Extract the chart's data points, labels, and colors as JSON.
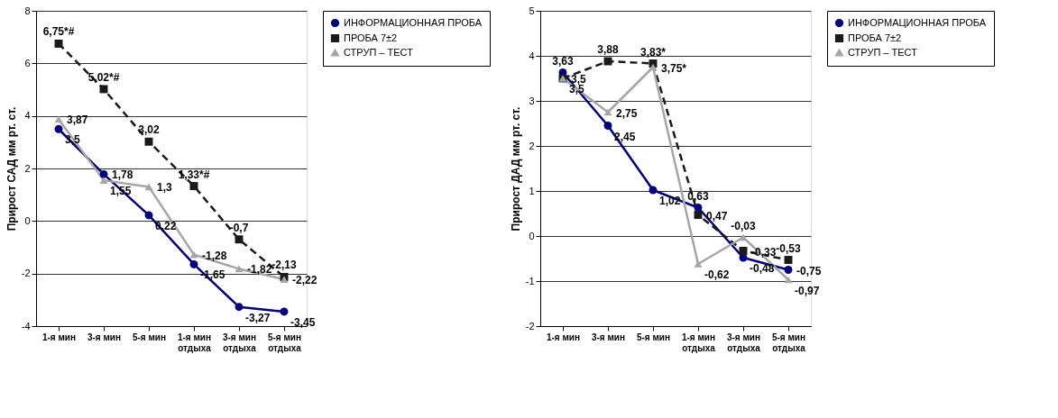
{
  "chart_data": [
    {
      "type": "line",
      "ylabel": "Прирост САД мм рт. ст.",
      "categories": [
        "1-я мин",
        "3-я мин",
        "5-я мин",
        "1-я мин отдыха",
        "3-я мин отдыха",
        "5-я мин отдыха"
      ],
      "ylim": [
        -4,
        8
      ],
      "yticks": [
        -4,
        -2,
        0,
        2,
        4,
        6,
        8
      ],
      "grid": "y",
      "legend": "right",
      "series": [
        {
          "name": "ИНФОРМАЦИОННАЯ ПРОБА",
          "color": "#000080",
          "marker": "circle",
          "line_style": "solid",
          "values": [
            3.5,
            1.78,
            0.22,
            -1.65,
            -3.27,
            -3.45
          ],
          "value_labels": [
            "3,5",
            "1,78",
            "0,22",
            "-1,65",
            "-3,27",
            "-3,45"
          ]
        },
        {
          "name": "ПРОБА 7±2",
          "color": "#1a1a1a",
          "marker": "square",
          "line_style": "dashed",
          "values": [
            6.75,
            5.02,
            3.02,
            1.33,
            -0.7,
            -2.13
          ],
          "value_labels": [
            "6,75*#",
            "5,02*#",
            "3,02",
            "1,33*#",
            "-0,7",
            "-2,13"
          ]
        },
        {
          "name": "СТРУП – ТЕСТ",
          "color": "#a6a6a6",
          "marker": "triangle",
          "line_style": "solid",
          "values": [
            3.87,
            1.55,
            1.3,
            -1.28,
            -1.82,
            -2.22
          ],
          "value_labels": [
            "3,87",
            "1,55",
            "1,3",
            "-1,28",
            "-1,82",
            "-2,22"
          ]
        }
      ]
    },
    {
      "type": "line",
      "ylabel": "Прирост ДАД мм рт. ст.",
      "categories": [
        "1-я мин",
        "3-я мин",
        "5-я мин",
        "1-я мин отдыха",
        "3-я мин отдыха",
        "5-я мин отдыха"
      ],
      "ylim": [
        -2,
        5
      ],
      "yticks": [
        -2,
        -1,
        0,
        1,
        2,
        3,
        4,
        5
      ],
      "grid": "y",
      "legend": "right",
      "series": [
        {
          "name": "ИНФОРМАЦИОННАЯ ПРОБА",
          "color": "#000080",
          "marker": "circle",
          "line_style": "solid",
          "values": [
            3.63,
            2.45,
            1.02,
            0.63,
            -0.48,
            -0.75
          ],
          "value_labels": [
            "3,63",
            "2,45",
            "1,02",
            "0,63",
            "-0,48",
            "-0,75"
          ]
        },
        {
          "name": "ПРОБА 7±2",
          "color": "#1a1a1a",
          "marker": "square",
          "line_style": "dashed",
          "values": [
            3.5,
            3.88,
            3.83,
            0.47,
            -0.33,
            -0.53
          ],
          "value_labels": [
            "3,5",
            "3,88",
            "3,83*",
            "0,47",
            "-0,33",
            "-0,53"
          ]
        },
        {
          "name": "СТРУП – ТЕСТ",
          "color": "#a6a6a6",
          "marker": "triangle",
          "line_style": "solid",
          "values": [
            3.5,
            2.75,
            3.75,
            -0.62,
            -0.03,
            -0.97
          ],
          "value_labels": [
            "3,5",
            "2,75",
            "3,75*",
            "-0,62",
            "-0,03",
            "-0,97"
          ]
        }
      ]
    }
  ]
}
